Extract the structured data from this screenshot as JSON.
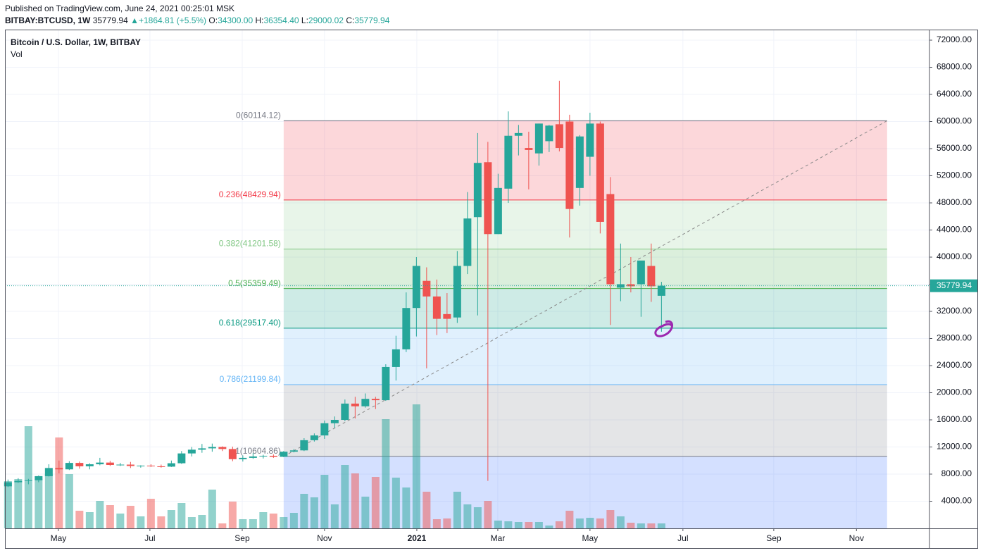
{
  "header": {
    "published": "Published on TradingView.com, June 24, 2021 00:25:01 MSK",
    "symbol": "BITBAY:BTCUSD, 1W",
    "last": "35779.94",
    "arrow": "▲",
    "change": "+1864.81 (+5.5%)",
    "o_label": "O:",
    "o": "34300.00",
    "h_label": "H:",
    "h": "36354.40",
    "l_label": "L:",
    "l": "29000.02",
    "c_label": "C:",
    "c": "35779.94"
  },
  "chart_data": {
    "type": "candlestick",
    "title": "Bitcoin / U.S. Dollar, 1W, BITBAY",
    "volume_label": "Vol",
    "up_color": "#26a69a",
    "down_color": "#ef5350",
    "open": [
      6200,
      6800,
      7000,
      7100,
      7700,
      8900,
      8700,
      9650,
      9150,
      9450,
      9700,
      9350,
      9400,
      9200,
      9250,
      9150,
      9100,
      9600,
      11050,
      11600,
      11800,
      12000,
      11700,
      10200,
      10400,
      10600,
      10700,
      10550,
      11300,
      11500,
      13000,
      13700,
      15500,
      16000,
      18400,
      18000,
      19100,
      18900,
      23800,
      26400,
      32500,
      36500,
      34200,
      31600,
      31100,
      38700,
      45900,
      54000,
      43400,
      50100,
      57900,
      56100,
      55300,
      57100,
      59600,
      60000,
      50200,
      54800,
      59700,
      49300,
      35500,
      36000,
      36000,
      38700,
      34300
    ],
    "high": [
      7200,
      7400,
      7300,
      7800,
      9450,
      10000,
      9900,
      9850,
      9600,
      10400,
      9950,
      9650,
      9800,
      9300,
      9450,
      9400,
      10000,
      11400,
      12000,
      12450,
      12500,
      12100,
      12050,
      10750,
      11100,
      10850,
      10900,
      11400,
      11700,
      13300,
      14000,
      15900,
      16500,
      19000,
      19400,
      19900,
      19400,
      24200,
      28400,
      34800,
      40000,
      38500,
      36700,
      34700,
      40900,
      49600,
      58300,
      57000,
      52300,
      61500,
      59500,
      58500,
      59700,
      59500,
      66000,
      61000,
      58000,
      61300,
      60000,
      51800,
      42000,
      40000,
      39400,
      42000,
      36354.4
    ],
    "low": [
      6100,
      6700,
      6500,
      6800,
      7650,
      8100,
      8600,
      8800,
      8700,
      9300,
      9200,
      9200,
      8900,
      8950,
      9050,
      8950,
      9050,
      9500,
      10600,
      11150,
      11300,
      11400,
      9900,
      9850,
      10250,
      10300,
      10400,
      10500,
      11200,
      11400,
      12800,
      13200,
      14800,
      15800,
      16200,
      17800,
      17600,
      18800,
      21800,
      26000,
      28300,
      23600,
      28500,
      28800,
      30300,
      37500,
      31400,
      7000,
      43400,
      48000,
      55000,
      50000,
      53500,
      55500,
      55600,
      42900,
      47600,
      52000,
      43500,
      30000,
      33500,
      34800,
      31200,
      33400,
      29000.02
    ],
    "close": [
      6800,
      7000,
      7100,
      7700,
      8900,
      8700,
      9650,
      9150,
      9450,
      9700,
      9350,
      9400,
      9200,
      9250,
      9150,
      9100,
      9600,
      11050,
      11600,
      11800,
      12000,
      11700,
      10200,
      10400,
      10600,
      10700,
      10550,
      11300,
      11500,
      13000,
      13700,
      15500,
      16000,
      18400,
      18000,
      19100,
      18900,
      23800,
      26400,
      32500,
      38700,
      34200,
      30900,
      30900,
      38700,
      45700,
      53900,
      43400,
      50200,
      57900,
      58300,
      55800,
      59700,
      59400,
      56100,
      47100,
      57800,
      59700,
      45200,
      36000,
      36000,
      35700,
      39500,
      35700,
      35779.94
    ],
    "volume": [
      67,
      70,
      145,
      70,
      77,
      129,
      77,
      25,
      23,
      39,
      33,
      21,
      32,
      17,
      42,
      17,
      26,
      36,
      16,
      19,
      55,
      7,
      38,
      13,
      13,
      23,
      21,
      16,
      22,
      49,
      44,
      76,
      34,
      90,
      78,
      45,
      73,
      155,
      72,
      58,
      176,
      52,
      13,
      14,
      52,
      34,
      30,
      39,
      11,
      10,
      9,
      9,
      9,
      4,
      10,
      25,
      14,
      15,
      14,
      26,
      17,
      8,
      7,
      7,
      7
    ],
    "xlim": [
      -0.3,
      90.25
    ],
    "xticks": [
      {
        "value": 4.94,
        "label": "May"
      },
      {
        "value": 13.9,
        "label": "Jul"
      },
      {
        "value": 22.94,
        "label": "Sep"
      },
      {
        "value": 31.0,
        "label": "Nov"
      },
      {
        "value": 40.04,
        "label": "2021"
      },
      {
        "value": 47.97,
        "label": "Mar"
      },
      {
        "value": 57.0,
        "label": "May"
      },
      {
        "value": 66.1,
        "label": "Jul"
      },
      {
        "value": 75.0,
        "label": "Sep"
      },
      {
        "value": 83.1,
        "label": "Nov"
      }
    ],
    "ylim": [
      0,
      73560
    ],
    "yticks": [
      {
        "value": 4000,
        "label": "4000.00"
      },
      {
        "value": 8000,
        "label": "8000.00"
      },
      {
        "value": 12000,
        "label": "12000.00"
      },
      {
        "value": 16000,
        "label": "16000.00"
      },
      {
        "value": 20000,
        "label": "20000.00"
      },
      {
        "value": 24000,
        "label": "24000.00"
      },
      {
        "value": 28000,
        "label": "28000.00"
      },
      {
        "value": 32000,
        "label": "32000.00"
      },
      {
        "value": 36000,
        "label": "36000.00"
      },
      {
        "value": 40000,
        "label": "40000.00"
      },
      {
        "value": 44000,
        "label": "44000.00"
      },
      {
        "value": 48000,
        "label": "48000.00"
      },
      {
        "value": 52000,
        "label": "52000.00"
      },
      {
        "value": 56000,
        "label": "56000.00"
      },
      {
        "value": 60000,
        "label": "60000.00"
      },
      {
        "value": 64000,
        "label": "64000.00"
      },
      {
        "value": 68000,
        "label": "68000.00"
      },
      {
        "value": 72000,
        "label": "72000.00"
      }
    ],
    "grid": true,
    "fib": {
      "x": [
        27.0,
        86.1
      ],
      "levels": [
        {
          "value": 60114.12,
          "label": "0(60114.12)",
          "color": "#787b86",
          "fill": "rgba(242,54,69,0.2)"
        },
        {
          "value": 48429.94,
          "label": "0.236(48429.94)",
          "color": "#f23645",
          "fill": "rgba(129,199,132,0.18)"
        },
        {
          "value": 41201.58,
          "label": "0.382(41201.58)",
          "color": "#81c784",
          "fill": "rgba(76,175,80,0.2)"
        },
        {
          "value": 35359.49,
          "label": "0.5(35359.49)",
          "color": "#4caf50",
          "fill": "rgba(8,153,129,0.2)"
        },
        {
          "value": 29517.4,
          "label": "0.618(29517.40)",
          "color": "#089981",
          "fill": "rgba(100,181,246,0.2)"
        },
        {
          "value": 21199.84,
          "label": "0.786(21199.84)",
          "color": "#64b5f6",
          "fill": "rgba(120,123,134,0.2)"
        },
        {
          "value": 10604.86,
          "label": "1(10604.86)",
          "color": "#787b86",
          "fill": "rgba(41,98,255,0.2)"
        }
      ]
    }
  }
}
